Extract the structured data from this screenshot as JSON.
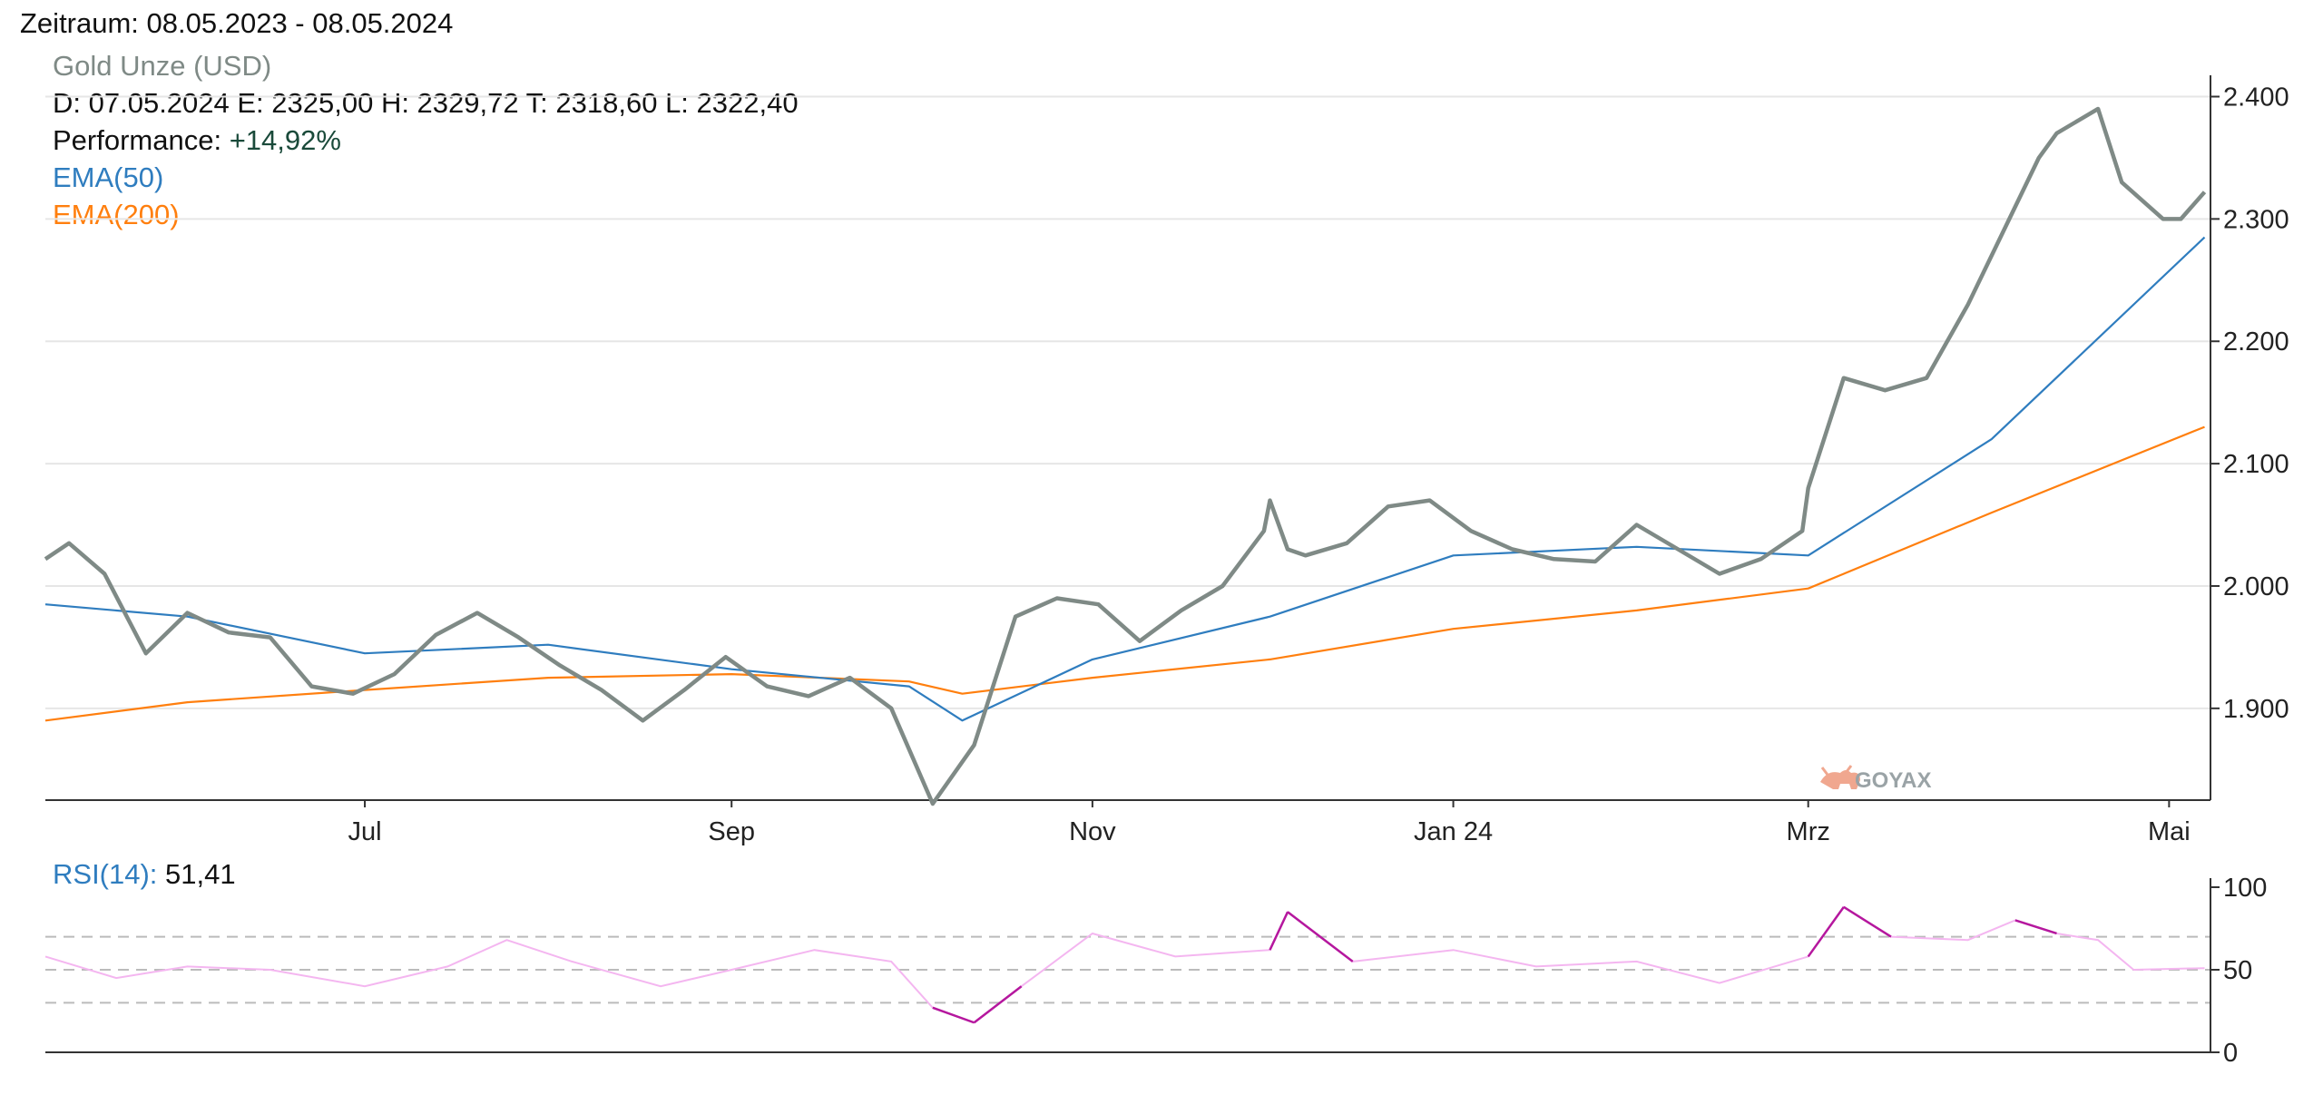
{
  "header": {
    "period": "Zeitraum: 08.05.2023 - 08.05.2024"
  },
  "legend": {
    "instrument": "Gold Unze (USD)",
    "quote": "D: 07.05.2024 E: 2325,00 H: 2329,72 T: 2318,60 L: 2322,40",
    "performance_label": "Performance:",
    "performance_value": "+14,92%",
    "ema50": "EMA(50)",
    "ema200": "EMA(200)"
  },
  "rsi": {
    "label": "RSI(14):",
    "value": "51,41"
  },
  "watermark": "GOYAX",
  "colors": {
    "price": "#7f8a86",
    "ema50": "#2f7dbf",
    "ema200": "#ff7f0e",
    "rsi_normal": "#f4b6f0",
    "rsi_extreme": "#b5179e",
    "grid": "#e6e6e6"
  },
  "chart_data": [
    {
      "type": "line",
      "title": "Gold Unze (USD)",
      "ylim": [
        1825,
        2410
      ],
      "xlim": [
        "2023-05-08",
        "2024-05-08"
      ],
      "x_ticks": [
        "Jul",
        "Sep",
        "Nov",
        "Jan 24",
        "Mrz",
        "Mai"
      ],
      "x_tick_dates": [
        "2023-07-01",
        "2023-09-01",
        "2023-11-01",
        "2024-01-01",
        "2024-03-01",
        "2024-05-01"
      ],
      "y_ticks": [
        "1.900",
        "2.000",
        "2.100",
        "2.200",
        "2.300",
        "2.400"
      ],
      "y_tick_values": [
        1900,
        2000,
        2100,
        2200,
        2300,
        2400
      ],
      "grid": true,
      "series": [
        {
          "name": "Gold Unze (USD)",
          "x": [
            "2023-05-08",
            "2023-05-12",
            "2023-05-18",
            "2023-05-25",
            "2023-06-01",
            "2023-06-08",
            "2023-06-15",
            "2023-06-22",
            "2023-06-29",
            "2023-07-06",
            "2023-07-13",
            "2023-07-20",
            "2023-07-27",
            "2023-08-03",
            "2023-08-10",
            "2023-08-17",
            "2023-08-24",
            "2023-08-31",
            "2023-09-07",
            "2023-09-14",
            "2023-09-21",
            "2023-09-28",
            "2023-10-05",
            "2023-10-12",
            "2023-10-19",
            "2023-10-26",
            "2023-11-02",
            "2023-11-09",
            "2023-11-16",
            "2023-11-23",
            "2023-11-30",
            "2023-12-01",
            "2023-12-04",
            "2023-12-07",
            "2023-12-14",
            "2023-12-21",
            "2023-12-28",
            "2024-01-04",
            "2024-01-11",
            "2024-01-18",
            "2024-01-25",
            "2024-02-01",
            "2024-02-08",
            "2024-02-15",
            "2024-02-22",
            "2024-02-29",
            "2024-03-01",
            "2024-03-07",
            "2024-03-14",
            "2024-03-21",
            "2024-03-28",
            "2024-04-04",
            "2024-04-09",
            "2024-04-12",
            "2024-04-19",
            "2024-04-23",
            "2024-04-30",
            "2024-05-03",
            "2024-05-07"
          ],
          "y": [
            2022,
            2035,
            2010,
            1945,
            1978,
            1962,
            1958,
            1918,
            1912,
            1928,
            1960,
            1978,
            1958,
            1935,
            1915,
            1890,
            1915,
            1942,
            1918,
            1910,
            1925,
            1900,
            1822,
            1870,
            1975,
            1990,
            1985,
            1955,
            1980,
            2000,
            2045,
            2070,
            2030,
            2025,
            2035,
            2065,
            2070,
            2045,
            2030,
            2022,
            2020,
            2050,
            2030,
            2010,
            2022,
            2045,
            2080,
            2170,
            2160,
            2170,
            2230,
            2300,
            2350,
            2370,
            2390,
            2330,
            2300,
            2300,
            2322
          ]
        },
        {
          "name": "EMA(50)",
          "x": [
            "2023-05-08",
            "2023-06-01",
            "2023-07-01",
            "2023-08-01",
            "2023-09-01",
            "2023-10-01",
            "2023-10-10",
            "2023-11-01",
            "2023-12-01",
            "2024-01-01",
            "2024-02-01",
            "2024-03-01",
            "2024-04-01",
            "2024-05-07"
          ],
          "y": [
            1985,
            1975,
            1945,
            1952,
            1932,
            1918,
            1890,
            1940,
            1975,
            2025,
            2032,
            2025,
            2120,
            2285
          ]
        },
        {
          "name": "EMA(200)",
          "x": [
            "2023-05-08",
            "2023-06-01",
            "2023-07-01",
            "2023-08-01",
            "2023-09-01",
            "2023-10-01",
            "2023-10-10",
            "2023-11-01",
            "2023-12-01",
            "2024-01-01",
            "2024-02-01",
            "2024-03-01",
            "2024-04-01",
            "2024-05-07"
          ],
          "y": [
            1890,
            1905,
            1915,
            1925,
            1928,
            1922,
            1912,
            1925,
            1940,
            1965,
            1980,
            1998,
            2060,
            2130
          ]
        }
      ]
    },
    {
      "type": "line",
      "title": "RSI(14): 51,41",
      "ylim": [
        0,
        100
      ],
      "y_ticks": [
        "0",
        "50",
        "100"
      ],
      "y_tick_values": [
        0,
        50,
        100
      ],
      "reference_lines": [
        30,
        50,
        70
      ],
      "series": [
        {
          "name": "RSI(14)",
          "x": [
            "2023-05-08",
            "2023-05-20",
            "2023-06-01",
            "2023-06-15",
            "2023-07-01",
            "2023-07-15",
            "2023-07-25",
            "2023-08-05",
            "2023-08-20",
            "2023-09-01",
            "2023-09-15",
            "2023-09-28",
            "2023-10-05",
            "2023-10-12",
            "2023-10-20",
            "2023-11-01",
            "2023-11-15",
            "2023-12-01",
            "2023-12-04",
            "2023-12-15",
            "2024-01-01",
            "2024-01-15",
            "2024-02-01",
            "2024-02-15",
            "2024-03-01",
            "2024-03-07",
            "2024-03-15",
            "2024-03-28",
            "2024-04-05",
            "2024-04-12",
            "2024-04-19",
            "2024-04-25",
            "2024-05-07"
          ],
          "y": [
            58,
            45,
            52,
            50,
            40,
            52,
            68,
            55,
            40,
            50,
            62,
            55,
            27,
            18,
            40,
            72,
            58,
            62,
            85,
            55,
            62,
            52,
            55,
            42,
            58,
            88,
            70,
            68,
            80,
            72,
            68,
            50,
            51
          ]
        }
      ]
    }
  ]
}
